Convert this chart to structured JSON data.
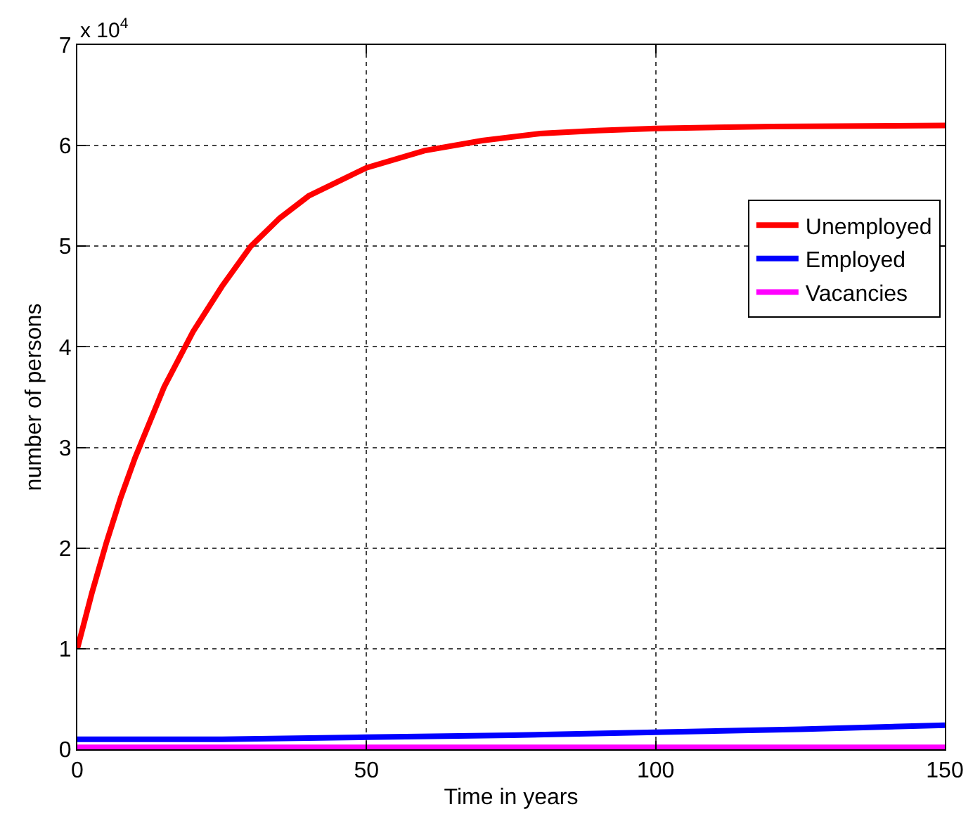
{
  "chart_data": {
    "type": "line",
    "xlabel": "Time in years",
    "ylabel": "number of persons",
    "annotations": [
      "x 10$^{4}$"
    ],
    "series": [
      {
        "name": "Unemployed",
        "color": "#ff0000",
        "x": [
          0,
          2.5,
          5,
          7.5,
          10,
          15,
          20,
          25,
          30,
          35,
          40,
          50,
          60,
          70,
          80,
          90,
          100,
          120,
          150
        ],
        "values": [
          1.0,
          1.55,
          2.05,
          2.5,
          2.9,
          3.6,
          4.15,
          4.6,
          5.0,
          5.28,
          5.5,
          5.78,
          5.95,
          6.05,
          6.12,
          6.15,
          6.17,
          6.19,
          6.2
        ]
      },
      {
        "name": "Employed",
        "color": "#0000ff",
        "x": [
          0,
          25,
          50,
          75,
          100,
          125,
          150
        ],
        "values": [
          0.1,
          0.1,
          0.12,
          0.14,
          0.17,
          0.2,
          0.24
        ]
      },
      {
        "name": "Vacancies",
        "color": "#ff00ff",
        "x": [
          0,
          50,
          100,
          150
        ],
        "values": [
          0.02,
          0.02,
          0.02,
          0.02
        ]
      }
    ],
    "xlim": [
      0,
      150
    ],
    "xticks": [
      0,
      50,
      100,
      150
    ],
    "ylim": [
      0,
      7
    ],
    "yticks": [
      0,
      1,
      2,
      3,
      4,
      5,
      6,
      7
    ],
    "grid": true,
    "legend": "right",
    "marker": "none",
    "line_style": "solid"
  }
}
